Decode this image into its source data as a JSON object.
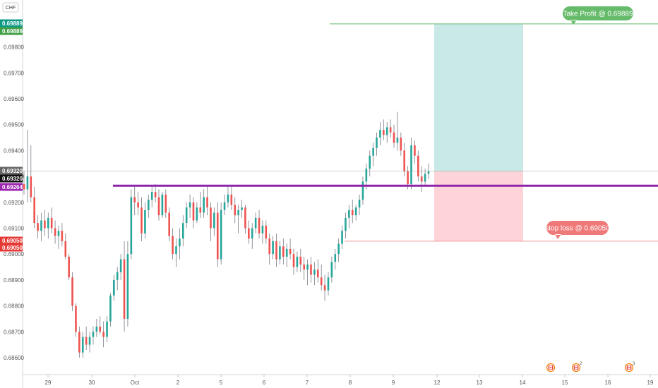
{
  "symbol": "CHF",
  "chart_data": {
    "type": "candlestick",
    "y_ticks": [
      "0.68600",
      "0.68700",
      "0.68800",
      "0.68900",
      "0.69000",
      "0.69100",
      "0.69200",
      "0.69300",
      "0.69400",
      "0.69500",
      "0.69600",
      "0.69700",
      "0.69800"
    ],
    "ylim": [
      0.6855,
      0.6995
    ],
    "x_ticks": [
      "29",
      "30",
      "Oct",
      "2",
      "5",
      "6",
      "7",
      "8",
      "9",
      "12",
      "13",
      "14",
      "15",
      "16",
      "19"
    ],
    "price_tags": [
      {
        "label": "0.69889",
        "color": "#0e9a87"
      },
      {
        "label": "0.69889",
        "color": "#43a047"
      },
      {
        "label": "0.69320",
        "color": "#666666"
      },
      {
        "label": "0.69320",
        "color": "#111111"
      },
      {
        "label": "0.69264",
        "color": "#9c27b0"
      },
      {
        "label": "0.69050",
        "color": "#e53935"
      },
      {
        "label": "0.69050",
        "color": "#e53935"
      }
    ],
    "support_level": 0.69264,
    "last_price": 0.6932,
    "take_profit": {
      "label": "Take Profit @ 0.69889",
      "price": 0.69889
    },
    "stop_loss": {
      "label": "stop loss @ 0.69050",
      "price": 0.6905
    },
    "events": [
      {
        "flag": "canada",
        "count": ""
      },
      {
        "flag": "canada",
        "count": "2"
      },
      {
        "flag": "canada",
        "count": "3"
      }
    ],
    "candles": [
      {
        "o": 0.6927,
        "h": 0.6932,
        "l": 0.6923,
        "c": 0.6925
      },
      {
        "o": 0.6925,
        "h": 0.6948,
        "l": 0.692,
        "c": 0.693
      },
      {
        "o": 0.693,
        "h": 0.6942,
        "l": 0.692,
        "c": 0.6922
      },
      {
        "o": 0.6922,
        "h": 0.6926,
        "l": 0.691,
        "c": 0.6912
      },
      {
        "o": 0.6912,
        "h": 0.6915,
        "l": 0.6906,
        "c": 0.6909
      },
      {
        "o": 0.6909,
        "h": 0.6916,
        "l": 0.6905,
        "c": 0.6913
      },
      {
        "o": 0.6913,
        "h": 0.6917,
        "l": 0.6907,
        "c": 0.691
      },
      {
        "o": 0.691,
        "h": 0.6916,
        "l": 0.6906,
        "c": 0.6914
      },
      {
        "o": 0.6914,
        "h": 0.6918,
        "l": 0.6908,
        "c": 0.691
      },
      {
        "o": 0.691,
        "h": 0.6913,
        "l": 0.6904,
        "c": 0.6907
      },
      {
        "o": 0.6907,
        "h": 0.6911,
        "l": 0.6902,
        "c": 0.6909
      },
      {
        "o": 0.6909,
        "h": 0.6912,
        "l": 0.6903,
        "c": 0.6905
      },
      {
        "o": 0.6905,
        "h": 0.6908,
        "l": 0.6898,
        "c": 0.6899
      },
      {
        "o": 0.6899,
        "h": 0.69,
        "l": 0.689,
        "c": 0.6891
      },
      {
        "o": 0.6891,
        "h": 0.6893,
        "l": 0.6878,
        "c": 0.688
      },
      {
        "o": 0.688,
        "h": 0.6881,
        "l": 0.6868,
        "c": 0.687
      },
      {
        "o": 0.687,
        "h": 0.6872,
        "l": 0.686,
        "c": 0.6862
      },
      {
        "o": 0.6862,
        "h": 0.687,
        "l": 0.686,
        "c": 0.6868
      },
      {
        "o": 0.6868,
        "h": 0.6872,
        "l": 0.6863,
        "c": 0.6865
      },
      {
        "o": 0.6865,
        "h": 0.687,
        "l": 0.6862,
        "c": 0.6868
      },
      {
        "o": 0.6868,
        "h": 0.6872,
        "l": 0.6865,
        "c": 0.687
      },
      {
        "o": 0.687,
        "h": 0.6875,
        "l": 0.6868,
        "c": 0.6872
      },
      {
        "o": 0.6872,
        "h": 0.6876,
        "l": 0.6869,
        "c": 0.687
      },
      {
        "o": 0.687,
        "h": 0.6874,
        "l": 0.6864,
        "c": 0.6868
      },
      {
        "o": 0.6868,
        "h": 0.6876,
        "l": 0.6866,
        "c": 0.6874
      },
      {
        "o": 0.6874,
        "h": 0.6885,
        "l": 0.6872,
        "c": 0.6884
      },
      {
        "o": 0.6884,
        "h": 0.6892,
        "l": 0.6882,
        "c": 0.689
      },
      {
        "o": 0.689,
        "h": 0.6895,
        "l": 0.6886,
        "c": 0.6893
      },
      {
        "o": 0.6893,
        "h": 0.69,
        "l": 0.689,
        "c": 0.6898
      },
      {
        "o": 0.6898,
        "h": 0.6905,
        "l": 0.687,
        "c": 0.6875
      },
      {
        "o": 0.6875,
        "h": 0.6905,
        "l": 0.6872,
        "c": 0.69
      },
      {
        "o": 0.69,
        "h": 0.6925,
        "l": 0.6898,
        "c": 0.6922
      },
      {
        "o": 0.6922,
        "h": 0.6926,
        "l": 0.6915,
        "c": 0.692
      },
      {
        "o": 0.692,
        "h": 0.6924,
        "l": 0.6915,
        "c": 0.6918
      },
      {
        "o": 0.6918,
        "h": 0.6922,
        "l": 0.6905,
        "c": 0.6908
      },
      {
        "o": 0.6908,
        "h": 0.692,
        "l": 0.6906,
        "c": 0.6917
      },
      {
        "o": 0.6917,
        "h": 0.6923,
        "l": 0.6914,
        "c": 0.6921
      },
      {
        "o": 0.6921,
        "h": 0.6926,
        "l": 0.6918,
        "c": 0.6924
      },
      {
        "o": 0.6924,
        "h": 0.6927,
        "l": 0.692,
        "c": 0.6922
      },
      {
        "o": 0.6922,
        "h": 0.6925,
        "l": 0.6913,
        "c": 0.6915
      },
      {
        "o": 0.6915,
        "h": 0.6924,
        "l": 0.6914,
        "c": 0.6923
      },
      {
        "o": 0.6923,
        "h": 0.6925,
        "l": 0.6914,
        "c": 0.6916
      },
      {
        "o": 0.6916,
        "h": 0.6918,
        "l": 0.6905,
        "c": 0.6907
      },
      {
        "o": 0.6907,
        "h": 0.691,
        "l": 0.6898,
        "c": 0.69
      },
      {
        "o": 0.69,
        "h": 0.6906,
        "l": 0.6895,
        "c": 0.6903
      },
      {
        "o": 0.6903,
        "h": 0.691,
        "l": 0.6898,
        "c": 0.6906
      },
      {
        "o": 0.6906,
        "h": 0.6915,
        "l": 0.6903,
        "c": 0.6912
      },
      {
        "o": 0.6912,
        "h": 0.692,
        "l": 0.691,
        "c": 0.6918
      },
      {
        "o": 0.6918,
        "h": 0.6923,
        "l": 0.6914,
        "c": 0.692
      },
      {
        "o": 0.692,
        "h": 0.6922,
        "l": 0.691,
        "c": 0.6913
      },
      {
        "o": 0.6913,
        "h": 0.692,
        "l": 0.6912,
        "c": 0.6918
      },
      {
        "o": 0.6918,
        "h": 0.6924,
        "l": 0.6914,
        "c": 0.6916
      },
      {
        "o": 0.6916,
        "h": 0.6925,
        "l": 0.6914,
        "c": 0.6922
      },
      {
        "o": 0.6922,
        "h": 0.6926,
        "l": 0.6915,
        "c": 0.6918
      },
      {
        "o": 0.6918,
        "h": 0.692,
        "l": 0.6905,
        "c": 0.691
      },
      {
        "o": 0.691,
        "h": 0.6918,
        "l": 0.6907,
        "c": 0.6916
      },
      {
        "o": 0.6916,
        "h": 0.692,
        "l": 0.6895,
        "c": 0.6898
      },
      {
        "o": 0.6898,
        "h": 0.692,
        "l": 0.6896,
        "c": 0.6917
      },
      {
        "o": 0.6917,
        "h": 0.6923,
        "l": 0.6915,
        "c": 0.692
      },
      {
        "o": 0.692,
        "h": 0.6926,
        "l": 0.6918,
        "c": 0.6923
      },
      {
        "o": 0.6923,
        "h": 0.6926,
        "l": 0.6917,
        "c": 0.6919
      },
      {
        "o": 0.6919,
        "h": 0.6922,
        "l": 0.6912,
        "c": 0.6915
      },
      {
        "o": 0.6915,
        "h": 0.6919,
        "l": 0.6908,
        "c": 0.6917
      },
      {
        "o": 0.6917,
        "h": 0.6921,
        "l": 0.6914,
        "c": 0.6918
      },
      {
        "o": 0.6918,
        "h": 0.6919,
        "l": 0.6908,
        "c": 0.691
      },
      {
        "o": 0.691,
        "h": 0.6913,
        "l": 0.6904,
        "c": 0.6906
      },
      {
        "o": 0.6906,
        "h": 0.6912,
        "l": 0.6902,
        "c": 0.691
      },
      {
        "o": 0.691,
        "h": 0.6916,
        "l": 0.6908,
        "c": 0.6914
      },
      {
        "o": 0.6914,
        "h": 0.6917,
        "l": 0.6906,
        "c": 0.6908
      },
      {
        "o": 0.6908,
        "h": 0.6913,
        "l": 0.6904,
        "c": 0.6911
      },
      {
        "o": 0.6911,
        "h": 0.6913,
        "l": 0.6904,
        "c": 0.6906
      },
      {
        "o": 0.6906,
        "h": 0.6908,
        "l": 0.6896,
        "c": 0.69
      },
      {
        "o": 0.69,
        "h": 0.6907,
        "l": 0.6898,
        "c": 0.6905
      },
      {
        "o": 0.6905,
        "h": 0.6908,
        "l": 0.6895,
        "c": 0.6898
      },
      {
        "o": 0.6898,
        "h": 0.6905,
        "l": 0.6896,
        "c": 0.6903
      },
      {
        "o": 0.6903,
        "h": 0.6906,
        "l": 0.6896,
        "c": 0.6899
      },
      {
        "o": 0.6899,
        "h": 0.6904,
        "l": 0.6895,
        "c": 0.6902
      },
      {
        "o": 0.6902,
        "h": 0.6906,
        "l": 0.6898,
        "c": 0.69
      },
      {
        "o": 0.69,
        "h": 0.6902,
        "l": 0.6892,
        "c": 0.6895
      },
      {
        "o": 0.6895,
        "h": 0.6901,
        "l": 0.6893,
        "c": 0.6899
      },
      {
        "o": 0.6899,
        "h": 0.6902,
        "l": 0.6893,
        "c": 0.6896
      },
      {
        "o": 0.6896,
        "h": 0.6899,
        "l": 0.689,
        "c": 0.6894
      },
      {
        "o": 0.6894,
        "h": 0.6898,
        "l": 0.6888,
        "c": 0.6896
      },
      {
        "o": 0.6896,
        "h": 0.6899,
        "l": 0.6889,
        "c": 0.6892
      },
      {
        "o": 0.6892,
        "h": 0.6897,
        "l": 0.6888,
        "c": 0.6894
      },
      {
        "o": 0.6894,
        "h": 0.6898,
        "l": 0.6889,
        "c": 0.6891
      },
      {
        "o": 0.6891,
        "h": 0.6896,
        "l": 0.6886,
        "c": 0.6888
      },
      {
        "o": 0.6888,
        "h": 0.6892,
        "l": 0.6882,
        "c": 0.6886
      },
      {
        "o": 0.6886,
        "h": 0.6893,
        "l": 0.6884,
        "c": 0.6891
      },
      {
        "o": 0.6891,
        "h": 0.6899,
        "l": 0.6889,
        "c": 0.6897
      },
      {
        "o": 0.6897,
        "h": 0.6902,
        "l": 0.6894,
        "c": 0.69
      },
      {
        "o": 0.69,
        "h": 0.6906,
        "l": 0.6897,
        "c": 0.6904
      },
      {
        "o": 0.6904,
        "h": 0.6911,
        "l": 0.6902,
        "c": 0.6909
      },
      {
        "o": 0.6909,
        "h": 0.6916,
        "l": 0.6906,
        "c": 0.6914
      },
      {
        "o": 0.6914,
        "h": 0.6919,
        "l": 0.691,
        "c": 0.6917
      },
      {
        "o": 0.6917,
        "h": 0.6921,
        "l": 0.6912,
        "c": 0.6915
      },
      {
        "o": 0.6915,
        "h": 0.6919,
        "l": 0.6913,
        "c": 0.6918
      },
      {
        "o": 0.6918,
        "h": 0.6923,
        "l": 0.6915,
        "c": 0.6921
      },
      {
        "o": 0.6921,
        "h": 0.693,
        "l": 0.6919,
        "c": 0.6928
      },
      {
        "o": 0.6928,
        "h": 0.6935,
        "l": 0.6925,
        "c": 0.6933
      },
      {
        "o": 0.6933,
        "h": 0.694,
        "l": 0.693,
        "c": 0.6938
      },
      {
        "o": 0.6938,
        "h": 0.6943,
        "l": 0.6934,
        "c": 0.6941
      },
      {
        "o": 0.6941,
        "h": 0.6947,
        "l": 0.6938,
        "c": 0.6945
      },
      {
        "o": 0.6945,
        "h": 0.6951,
        "l": 0.6942,
        "c": 0.6948
      },
      {
        "o": 0.6948,
        "h": 0.6952,
        "l": 0.6944,
        "c": 0.6946
      },
      {
        "o": 0.6946,
        "h": 0.6951,
        "l": 0.6943,
        "c": 0.6949
      },
      {
        "o": 0.6949,
        "h": 0.6952,
        "l": 0.6945,
        "c": 0.6947
      },
      {
        "o": 0.6947,
        "h": 0.695,
        "l": 0.6941,
        "c": 0.6943
      },
      {
        "o": 0.6943,
        "h": 0.6955,
        "l": 0.694,
        "c": 0.6945
      },
      {
        "o": 0.6945,
        "h": 0.6947,
        "l": 0.6938,
        "c": 0.694
      },
      {
        "o": 0.694,
        "h": 0.6943,
        "l": 0.693,
        "c": 0.6932
      },
      {
        "o": 0.6932,
        "h": 0.6934,
        "l": 0.6925,
        "c": 0.6927
      },
      {
        "o": 0.6927,
        "h": 0.6945,
        "l": 0.6925,
        "c": 0.6942
      },
      {
        "o": 0.6942,
        "h": 0.6944,
        "l": 0.6935,
        "c": 0.6938
      },
      {
        "o": 0.6938,
        "h": 0.694,
        "l": 0.6928,
        "c": 0.693
      },
      {
        "o": 0.693,
        "h": 0.6934,
        "l": 0.6924,
        "c": 0.6928
      },
      {
        "o": 0.6928,
        "h": 0.6933,
        "l": 0.6926,
        "c": 0.6931
      },
      {
        "o": 0.6931,
        "h": 0.6935,
        "l": 0.6929,
        "c": 0.6932
      }
    ]
  }
}
